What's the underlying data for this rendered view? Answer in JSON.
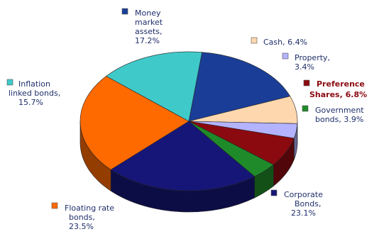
{
  "chart_data": {
    "type": "pie",
    "title": "",
    "slices": [
      {
        "label_lines": [
          "Money",
          "market",
          "assets,",
          "17.2%"
        ],
        "value": 17.2,
        "color": "#1a3e97",
        "highlight": false
      },
      {
        "label_lines": [
          "Cash, 6.4%"
        ],
        "value": 6.4,
        "color": "#ffd7ae",
        "highlight": false
      },
      {
        "label_lines": [
          "Property,",
          "3.4%"
        ],
        "value": 3.4,
        "color": "#b3b3ff",
        "highlight": false
      },
      {
        "label_lines": [
          "Preference",
          "Shares, 6.8%"
        ],
        "value": 6.8,
        "color": "#8b0a10",
        "highlight": true
      },
      {
        "label_lines": [
          "Government",
          "bonds, 3.9%"
        ],
        "value": 3.9,
        "color": "#1f8a2a",
        "highlight": false
      },
      {
        "label_lines": [
          "Corporate",
          "Bonds,",
          "23.1%"
        ],
        "value": 23.1,
        "color": "#161678",
        "highlight": false
      },
      {
        "label_lines": [
          "Floating rate",
          "bonds,",
          "23.5%"
        ],
        "value": 23.5,
        "color": "#ff6a00",
        "highlight": false
      },
      {
        "label_lines": [
          "Inflation",
          "linked bonds,",
          "15.7%"
        ],
        "value": 15.7,
        "color": "#40c9c9",
        "highlight": false
      }
    ]
  }
}
